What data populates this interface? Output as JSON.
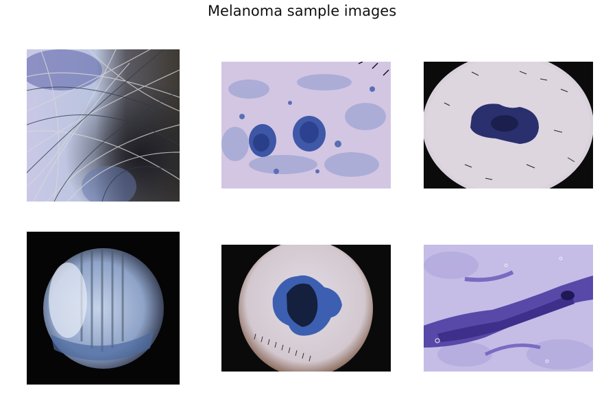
{
  "figure": {
    "title": "Melanoma sample images"
  },
  "images": [
    {
      "id": "sample-1",
      "description_icon": "hairy-skin-lesion"
    },
    {
      "id": "sample-2",
      "description_icon": "blue-speckled-lesion"
    },
    {
      "id": "sample-3",
      "description_icon": "dark-lesion-in-scope"
    },
    {
      "id": "sample-4",
      "description_icon": "scope-with-streaks"
    },
    {
      "id": "sample-5",
      "description_icon": "blue-lesion-in-scope"
    },
    {
      "id": "sample-6",
      "description_icon": "purple-streaked-lesion"
    }
  ]
}
